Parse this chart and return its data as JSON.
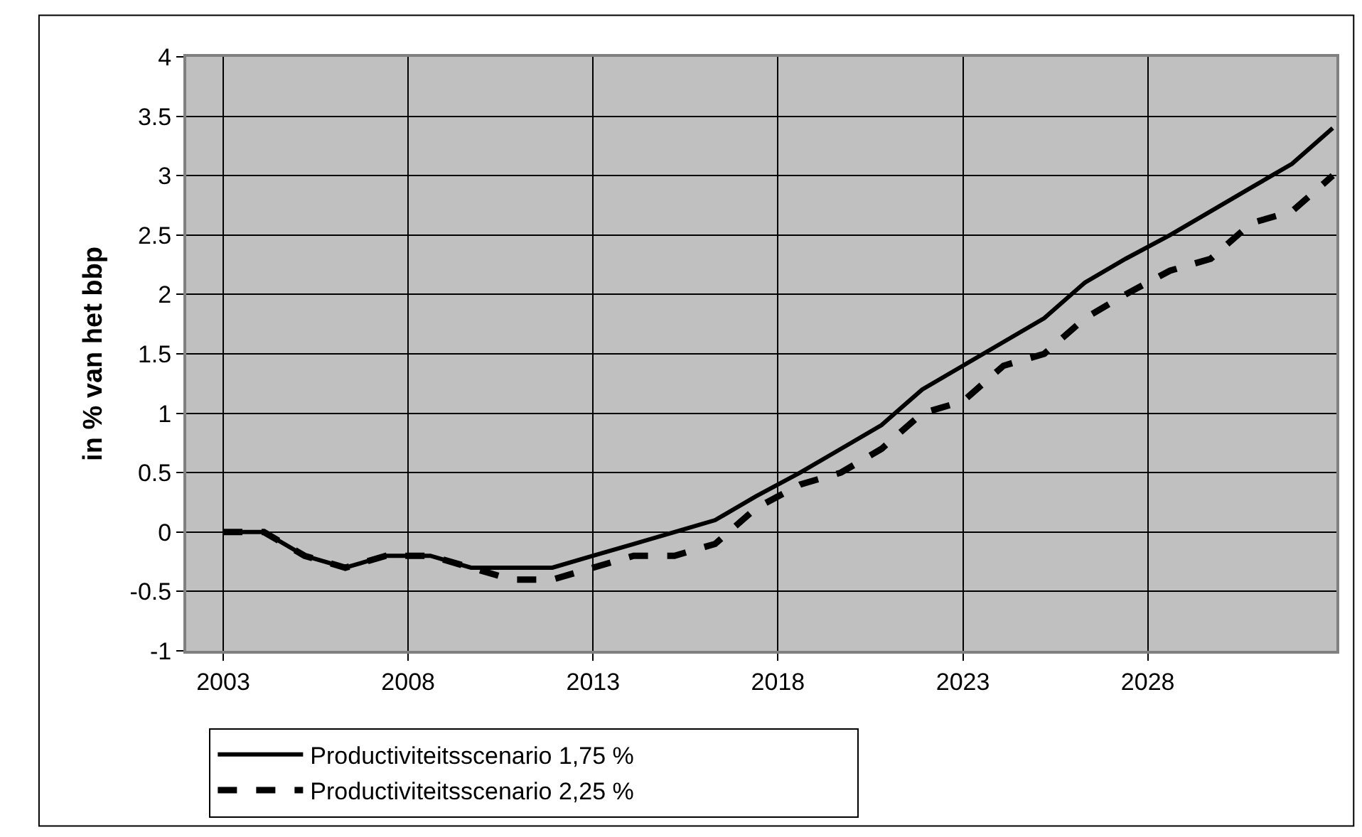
{
  "chart_data": {
    "type": "line",
    "ylabel": "in % van het bbp",
    "x": [
      2003,
      2004.1,
      2005.2,
      2006.3,
      2007.4,
      2008.6,
      2009.7,
      2010.8,
      2011.9,
      2013,
      2014.1,
      2015.2,
      2016.3,
      2017.4,
      2018.6,
      2019.7,
      2020.8,
      2021.9,
      2023,
      2024.1,
      2025.2,
      2026.3,
      2027.4,
      2028.6,
      2029.7,
      2030.8,
      2031.9,
      2033
    ],
    "series": [
      {
        "name": "Productiviteitsscenario 1,75 %",
        "color": "#000000",
        "line_style": "solid",
        "values": [
          0,
          0,
          -0.2,
          -0.3,
          -0.2,
          -0.2,
          -0.3,
          -0.3,
          -0.3,
          -0.2,
          -0.1,
          0,
          0.1,
          0.3,
          0.5,
          0.7,
          0.9,
          1.2,
          1.4,
          1.6,
          1.8,
          2.1,
          2.3,
          2.5,
          2.7,
          2.9,
          3.1,
          3.4
        ]
      },
      {
        "name": "Productiviteitsscenario 2,25 %",
        "color": "#000000",
        "line_style": "dashed",
        "values": [
          0,
          0,
          -0.2,
          -0.3,
          -0.2,
          -0.2,
          -0.3,
          -0.4,
          -0.4,
          -0.3,
          -0.2,
          -0.2,
          -0.1,
          0.2,
          0.4,
          0.5,
          0.7,
          1.0,
          1.1,
          1.4,
          1.5,
          1.8,
          2.0,
          2.2,
          2.3,
          2.6,
          2.7,
          3.0
        ]
      }
    ],
    "xlim": [
      2002,
      2033.1
    ],
    "xticks": [
      2003,
      2008,
      2013,
      2018,
      2023,
      2028
    ],
    "ylim": [
      -1,
      4
    ],
    "yticks": [
      -1,
      -0.5,
      0,
      0.5,
      1,
      1.5,
      2,
      2.5,
      3,
      3.5,
      4
    ],
    "grid": true,
    "legend": "bottom",
    "marker": "none"
  }
}
